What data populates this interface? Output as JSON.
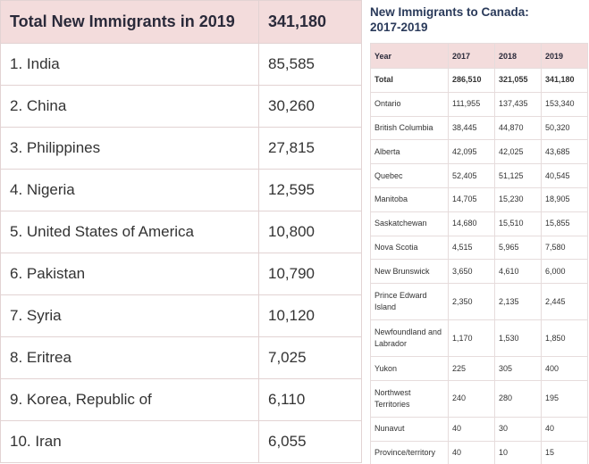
{
  "left_table": {
    "header": {
      "label": "Total New Immigrants in 2019",
      "value": "341,180"
    },
    "rows": [
      {
        "label": "1. India",
        "value": "85,585"
      },
      {
        "label": "2. China",
        "value": "30,260"
      },
      {
        "label": "3. Philippines",
        "value": "27,815"
      },
      {
        "label": "4. Nigeria",
        "value": "12,595"
      },
      {
        "label": "5. United States of America",
        "value": "10,800"
      },
      {
        "label": "6. Pakistan",
        "value": "10,790"
      },
      {
        "label": "7. Syria",
        "value": "10,120"
      },
      {
        "label": "8. Eritrea",
        "value": "7,025"
      },
      {
        "label": "9. Korea, Republic of",
        "value": "6,110"
      },
      {
        "label": "10. Iran",
        "value": "6,055"
      }
    ]
  },
  "right_table": {
    "title_line1": "New Immigrants to Canada:",
    "title_line2": "2017-2019",
    "headers": [
      "Year",
      "2017",
      "2018",
      "2019"
    ],
    "rows": [
      {
        "name": "Total",
        "v2017": "286,510",
        "v2018": "321,055",
        "v2019": "341,180"
      },
      {
        "name": "Ontario",
        "v2017": "111,955",
        "v2018": "137,435",
        "v2019": "153,340"
      },
      {
        "name": "British Columbia",
        "v2017": "38,445",
        "v2018": "44,870",
        "v2019": "50,320"
      },
      {
        "name": "Alberta",
        "v2017": "42,095",
        "v2018": "42,025",
        "v2019": "43,685"
      },
      {
        "name": "Quebec",
        "v2017": "52,405",
        "v2018": "51,125",
        "v2019": "40,545"
      },
      {
        "name": "Manitoba",
        "v2017": "14,705",
        "v2018": "15,230",
        "v2019": "18,905"
      },
      {
        "name": "Saskatchewan",
        "v2017": "14,680",
        "v2018": "15,510",
        "v2019": "15,855"
      },
      {
        "name": "Nova Scotia",
        "v2017": "4,515",
        "v2018": "5,965",
        "v2019": "7,580"
      },
      {
        "name": "New Brunswick",
        "v2017": "3,650",
        "v2018": "4,610",
        "v2019": "6,000"
      },
      {
        "name": "Prince Edward Island",
        "v2017": "2,350",
        "v2018": "2,135",
        "v2019": "2,445"
      },
      {
        "name": "Newfoundland and Labrador",
        "v2017": "1,170",
        "v2018": "1,530",
        "v2019": "1,850"
      },
      {
        "name": "Yukon",
        "v2017": "225",
        "v2018": "305",
        "v2019": "400"
      },
      {
        "name": "Northwest Territories",
        "v2017": "240",
        "v2018": "280",
        "v2019": "195"
      },
      {
        "name": "Nunavut",
        "v2017": "40",
        "v2018": "30",
        "v2019": "40"
      },
      {
        "name": "Province/territory",
        "v2017": "40",
        "v2018": "10",
        "v2019": "15"
      }
    ]
  }
}
